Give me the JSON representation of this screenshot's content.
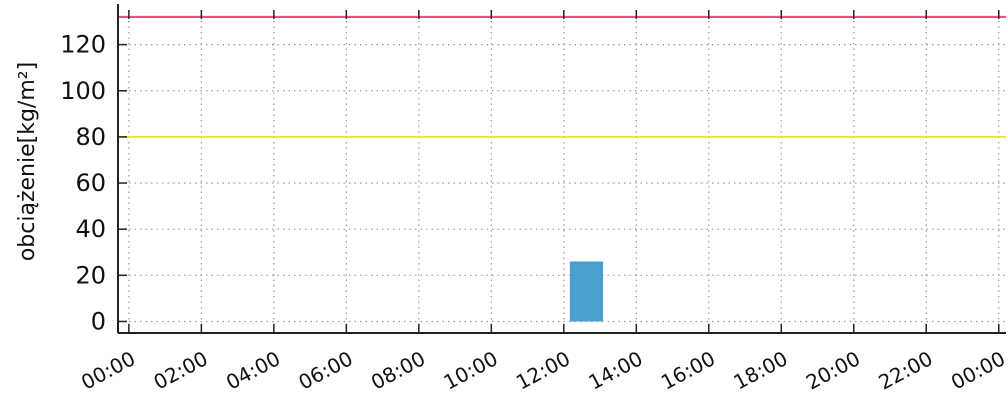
{
  "chart_data": {
    "type": "bar",
    "title": "",
    "xlabel": "",
    "ylabel": "obciążenie[kg/m²]",
    "x_tick_labels": [
      "00:00",
      "02:00",
      "04:00",
      "06:00",
      "08:00",
      "10:00",
      "12:00",
      "14:00",
      "16:00",
      "18:00",
      "20:00",
      "22:00",
      "00:00"
    ],
    "y_ticks": [
      0,
      20,
      40,
      60,
      80,
      100,
      120
    ],
    "ylim": [
      -5,
      135
    ],
    "xlim_hours": [
      -0.3,
      24.2
    ],
    "grid": true,
    "bars": [
      {
        "x_start": "12:10",
        "x_end": "13:05",
        "value": 26
      }
    ],
    "reference_lines": [
      {
        "value": 132,
        "color": "#e8507a"
      },
      {
        "value": 80,
        "color": "#e7e23a"
      }
    ],
    "colors": {
      "bar": "#4a9fd1",
      "grid": "#999999",
      "axis": "#222222"
    }
  }
}
